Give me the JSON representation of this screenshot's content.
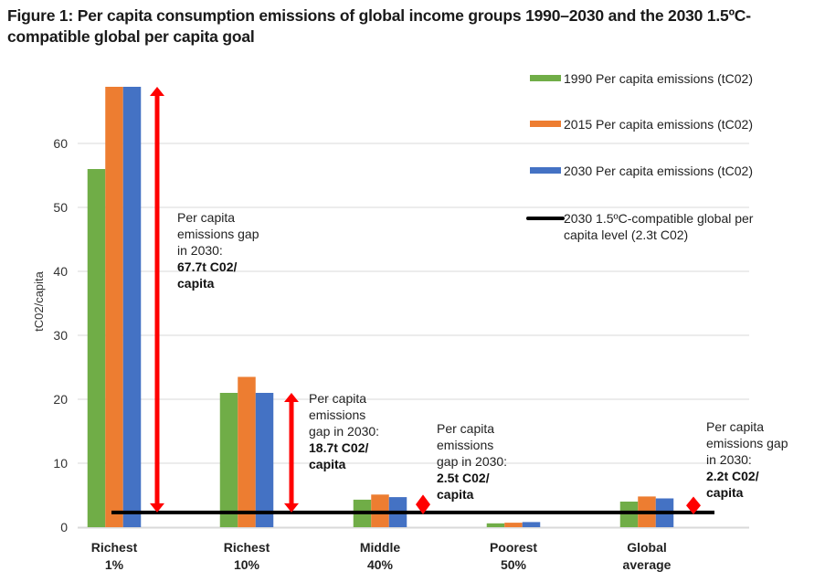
{
  "chart_data": {
    "type": "bar",
    "title": "Figure 1: Per capita consumption emissions of global income groups 1990–2030 and the 2030 1.5ºC-compatible global per capita goal",
    "xlabel": "",
    "ylabel": "tC02/capita",
    "ylim": [
      0,
      70
    ],
    "yticks": [
      0,
      10,
      20,
      30,
      40,
      50,
      60
    ],
    "grid": true,
    "legend_position": "top-right",
    "categories": [
      {
        "line1": "Richest",
        "line2": "1%"
      },
      {
        "line1": "Richest",
        "line2": "10%"
      },
      {
        "line1": "Middle",
        "line2": "40%"
      },
      {
        "line1": "Poorest",
        "line2": "50%"
      },
      {
        "line1": "Global",
        "line2": "average"
      }
    ],
    "series": [
      {
        "name": "1990 Per capita emissions (tC02)",
        "color": "#70ad47",
        "values": [
          56,
          21,
          4.3,
          0.6,
          4.0
        ]
      },
      {
        "name": "2015 Per capita emissions (tC02)",
        "color": "#ed7d31",
        "values": [
          70,
          23.5,
          5.1,
          0.7,
          4.8
        ]
      },
      {
        "name": "2030 Per capita emissions (tC02)",
        "color": "#4472c4",
        "values": [
          70,
          21,
          4.7,
          0.8,
          4.5
        ]
      }
    ],
    "reference_line": {
      "name": "2030 1.5ºC-compatible global per capita level (2.3t C02)",
      "line1": "2030 1.5ºC-compatible global per",
      "line2": "capita level (2.3t C02)",
      "value": 2.3,
      "color": "#000000"
    },
    "gap_color": "#ff0000",
    "annotations": [
      {
        "category": 0,
        "lines": [
          "Per capita",
          "emissions gap",
          "in 2030:"
        ],
        "bold": [
          "67.7t C02/",
          "capita"
        ],
        "gap": 67.7
      },
      {
        "category": 1,
        "lines": [
          "Per capita",
          "emissions",
          "gap in 2030:"
        ],
        "bold": [
          "18.7t C02/",
          "capita"
        ],
        "gap": 18.7
      },
      {
        "category": 2,
        "lines": [
          "Per capita",
          "emissions",
          "gap in 2030:"
        ],
        "bold": [
          "2.5t C02/",
          "capita"
        ],
        "gap": 2.5
      },
      {
        "category": 4,
        "lines": [
          "Per capita",
          "emissions gap",
          "in 2030:"
        ],
        "bold": [
          "2.2t C02/",
          "capita"
        ],
        "gap": 2.2
      }
    ]
  }
}
